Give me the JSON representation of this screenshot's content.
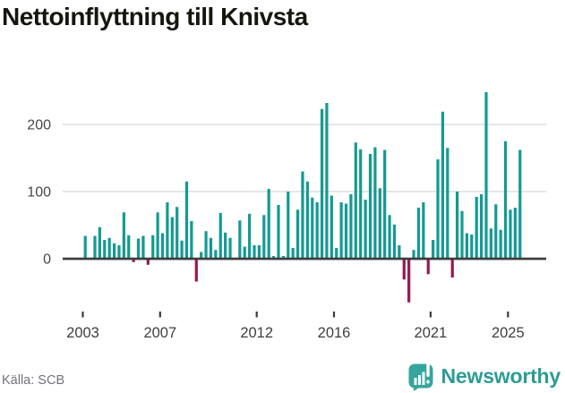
{
  "chart_data": {
    "type": "bar",
    "title": "Nettoinflyttning till Knivsta",
    "source": "Källa: SCB",
    "frequency": "quarterly",
    "start": "2003-Q1",
    "end": "2025-Q3",
    "values": [
      34,
      0,
      34,
      47,
      28,
      31,
      23,
      20,
      69,
      35,
      -5,
      30,
      34,
      -9,
      35,
      69,
      38,
      84,
      62,
      77,
      27,
      115,
      56,
      -34,
      10,
      41,
      31,
      13,
      68,
      39,
      31,
      0,
      57,
      18,
      67,
      20,
      20,
      65,
      104,
      4,
      80,
      4,
      100,
      16,
      73,
      130,
      115,
      91,
      84,
      223,
      232,
      94,
      16,
      84,
      82,
      96,
      173,
      163,
      88,
      156,
      166,
      105,
      162,
      65,
      51,
      20,
      -31,
      -65,
      13,
      76,
      84,
      -23,
      28,
      148,
      219,
      165,
      -28,
      100,
      71,
      38,
      36,
      92,
      96,
      248,
      45,
      81,
      43,
      175,
      73,
      76,
      162
    ],
    "x_ticks": [
      2003,
      2007,
      2012,
      2016,
      2021,
      2025
    ],
    "y_ticks": [
      0,
      100,
      200
    ],
    "ylim": [
      -70,
      255
    ],
    "grid": "horizontal",
    "legend": "none",
    "colors": {
      "positive": "#149a92",
      "negative": "#951a52"
    }
  },
  "brand": {
    "name": "Newsworthy"
  }
}
